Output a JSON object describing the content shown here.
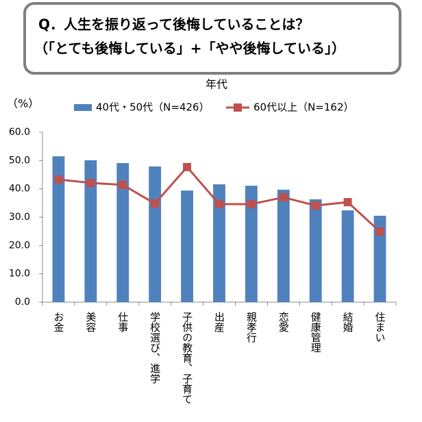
{
  "chart_data": {
    "type": "bar_line",
    "title": "Q．人生を振り返って後悔していることは？",
    "subtitle": "（「とても後悔している」+「やや後悔している」）",
    "legend_title": "年代",
    "y_label": "（%）",
    "categories": [
      "お金",
      "美容",
      "仕事",
      "学校選び、進学",
      "子供の教育、子育て",
      "出産",
      "親孝行",
      "恋愛",
      "健康管理",
      "結婚",
      "住まい"
    ],
    "series": [
      {
        "name": "40代・50代（N=426）",
        "type": "bar",
        "color": "#4f81bd",
        "values": [
          51.5,
          50.1,
          49.1,
          47.9,
          39.4,
          41.6,
          41.1,
          39.7,
          36.3,
          32.4,
          30.5
        ]
      },
      {
        "name": "60代以上（N=162）",
        "type": "line",
        "color": "#c0504d",
        "values": [
          43.3,
          42.1,
          41.4,
          34.8,
          47.7,
          34.6,
          34.6,
          37.0,
          34.1,
          35.3,
          24.9
        ]
      }
    ],
    "ylim": [
      0,
      60
    ],
    "yticks": [
      {
        "value": 0,
        "label": "0.0"
      },
      {
        "value": 10,
        "label": "10.0"
      },
      {
        "value": 20,
        "label": "20.0"
      },
      {
        "value": 30,
        "label": "30.0"
      },
      {
        "value": 40,
        "label": "40.0"
      },
      {
        "value": 50,
        "label": "50.0"
      },
      {
        "value": 60,
        "label": "60.0"
      }
    ],
    "grid": false
  }
}
